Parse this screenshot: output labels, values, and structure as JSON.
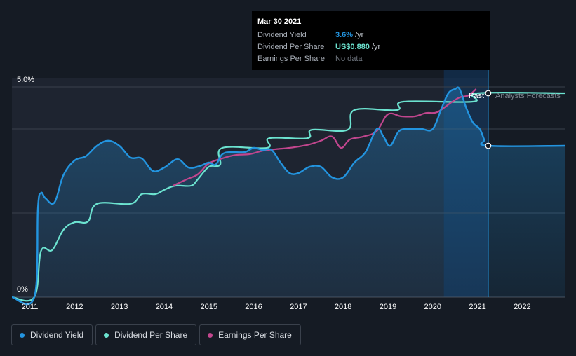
{
  "colors": {
    "background": "#151b24",
    "plot_bg": "#1e2430",
    "dividend_yield": "#2394df",
    "dividend_per_share": "#6ce3d0",
    "earnings_per_share": "#c2468e",
    "forecast_band": "#103660"
  },
  "tooltip": {
    "date": "Mar 30 2021",
    "rows": [
      {
        "label": "Dividend Yield",
        "value": "3.6%",
        "unit": "/yr",
        "color": "#2394df"
      },
      {
        "label": "Dividend Per Share",
        "value": "US$0.880",
        "unit": "/yr",
        "color": "#6ce3d0"
      },
      {
        "label": "Earnings Per Share",
        "value": "No data",
        "unit": ""
      }
    ]
  },
  "annotations": {
    "past": "Past",
    "forecast": "Analysts Forecasts"
  },
  "legend": [
    {
      "label": "Dividend Yield",
      "color": "#2394df"
    },
    {
      "label": "Dividend Per Share",
      "color": "#6ce3d0"
    },
    {
      "label": "Earnings Per Share",
      "color": "#c2468e"
    }
  ],
  "chart_data": {
    "type": "line",
    "y_tick_labels": [
      "5.0%",
      "0%"
    ],
    "ylim": [
      0,
      5.0
    ],
    "xlim": [
      2010.6,
      2022.95
    ],
    "x_ticks": [
      2011,
      2012,
      2013,
      2014,
      2015,
      2016,
      2017,
      2018,
      2019,
      2020,
      2021,
      2022
    ],
    "grid": true,
    "past_end": 2021.24,
    "forecast_start": 2020.25,
    "series": [
      {
        "name": "Dividend Yield",
        "points": [
          [
            2010.6,
            0
          ],
          [
            2011.1,
            0
          ],
          [
            2011.18,
            2.1
          ],
          [
            2011.25,
            2.48
          ],
          [
            2011.35,
            2.35
          ],
          [
            2011.55,
            2.25
          ],
          [
            2011.75,
            2.9
          ],
          [
            2012.0,
            3.25
          ],
          [
            2012.25,
            3.35
          ],
          [
            2012.5,
            3.6
          ],
          [
            2012.75,
            3.72
          ],
          [
            2013.0,
            3.6
          ],
          [
            2013.25,
            3.32
          ],
          [
            2013.5,
            3.3
          ],
          [
            2013.75,
            3.0
          ],
          [
            2014.0,
            3.08
          ],
          [
            2014.3,
            3.28
          ],
          [
            2014.55,
            3.08
          ],
          [
            2014.8,
            3.12
          ],
          [
            2015.0,
            3.2
          ],
          [
            2015.15,
            3.15
          ],
          [
            2015.3,
            3.4
          ],
          [
            2015.5,
            3.45
          ],
          [
            2015.8,
            3.45
          ],
          [
            2016.0,
            3.55
          ],
          [
            2016.2,
            3.5
          ],
          [
            2016.4,
            3.5
          ],
          [
            2016.6,
            3.2
          ],
          [
            2016.8,
            2.95
          ],
          [
            2017.0,
            2.95
          ],
          [
            2017.25,
            3.1
          ],
          [
            2017.5,
            3.1
          ],
          [
            2017.75,
            2.85
          ],
          [
            2018.0,
            2.85
          ],
          [
            2018.25,
            3.2
          ],
          [
            2018.5,
            3.45
          ],
          [
            2018.75,
            4.0
          ],
          [
            2018.9,
            3.82
          ],
          [
            2019.05,
            3.6
          ],
          [
            2019.25,
            3.95
          ],
          [
            2019.5,
            4.0
          ],
          [
            2019.75,
            4.0
          ],
          [
            2020.0,
            4.0
          ],
          [
            2020.2,
            4.5
          ],
          [
            2020.35,
            4.85
          ],
          [
            2020.5,
            4.95
          ],
          [
            2020.6,
            4.95
          ],
          [
            2020.75,
            4.5
          ],
          [
            2020.9,
            4.15
          ],
          [
            2021.05,
            4.0
          ],
          [
            2021.15,
            3.75
          ],
          [
            2021.24,
            3.6
          ],
          [
            2022.95,
            3.6
          ]
        ]
      },
      {
        "name": "Dividend Per Share",
        "points": [
          [
            2010.6,
            0
          ],
          [
            2011.1,
            0
          ],
          [
            2011.25,
            1.1
          ],
          [
            2011.5,
            1.12
          ],
          [
            2011.75,
            1.6
          ],
          [
            2012.0,
            1.78
          ],
          [
            2012.3,
            1.8
          ],
          [
            2012.5,
            2.22
          ],
          [
            2013.25,
            2.22
          ],
          [
            2013.5,
            2.45
          ],
          [
            2013.8,
            2.45
          ],
          [
            2014.0,
            2.55
          ],
          [
            2014.25,
            2.65
          ],
          [
            2014.6,
            2.65
          ],
          [
            2014.75,
            2.8
          ],
          [
            2015.0,
            3.1
          ],
          [
            2015.25,
            3.15
          ],
          [
            2015.3,
            3.55
          ],
          [
            2016.3,
            3.55
          ],
          [
            2016.35,
            3.78
          ],
          [
            2017.2,
            3.78
          ],
          [
            2017.3,
            3.98
          ],
          [
            2018.1,
            3.98
          ],
          [
            2018.25,
            4.45
          ],
          [
            2019.2,
            4.45
          ],
          [
            2019.35,
            4.65
          ],
          [
            2020.9,
            4.65
          ],
          [
            2021.0,
            4.85
          ],
          [
            2022.95,
            4.85
          ]
        ]
      },
      {
        "name": "Earnings Per Share",
        "points": [
          [
            2014.2,
            2.65
          ],
          [
            2014.5,
            2.8
          ],
          [
            2014.75,
            2.92
          ],
          [
            2015.0,
            3.18
          ],
          [
            2015.3,
            3.3
          ],
          [
            2015.6,
            3.38
          ],
          [
            2015.9,
            3.4
          ],
          [
            2016.2,
            3.48
          ],
          [
            2016.5,
            3.52
          ],
          [
            2016.8,
            3.55
          ],
          [
            2017.2,
            3.62
          ],
          [
            2017.5,
            3.72
          ],
          [
            2017.75,
            3.82
          ],
          [
            2017.95,
            3.55
          ],
          [
            2018.15,
            3.75
          ],
          [
            2018.45,
            3.82
          ],
          [
            2018.75,
            3.95
          ],
          [
            2019.0,
            4.35
          ],
          [
            2019.3,
            4.3
          ],
          [
            2019.6,
            4.3
          ],
          [
            2019.85,
            4.38
          ],
          [
            2020.1,
            4.4
          ],
          [
            2020.4,
            4.62
          ],
          [
            2020.6,
            4.75
          ],
          [
            2020.8,
            4.8
          ],
          [
            2020.97,
            4.95
          ]
        ]
      }
    ]
  }
}
